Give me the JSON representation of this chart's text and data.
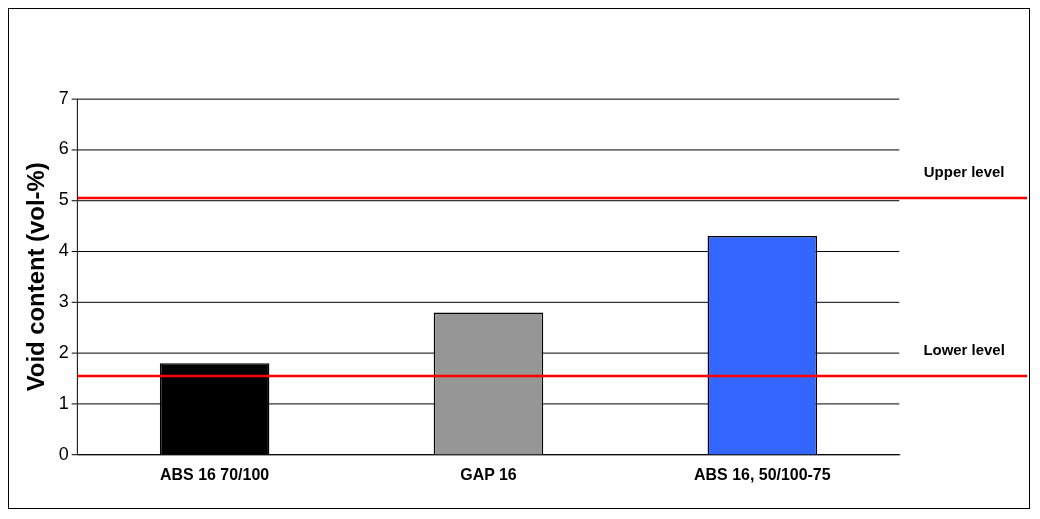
{
  "chart_data": {
    "type": "bar",
    "ylabel": "Void content (vol-%)",
    "categories": [
      "ABS 16 70/100",
      "GAP 16",
      "ABS 16, 50/100-75"
    ],
    "values": [
      1.8,
      2.8,
      4.3
    ],
    "colors": [
      "#000000",
      "#969696",
      "#3366ff"
    ],
    "ylim": [
      0,
      7
    ],
    "yticks": [
      0,
      1,
      2,
      3,
      4,
      5,
      6,
      7
    ],
    "grid": "y",
    "legend": false,
    "ref_lines": [
      {
        "axis": "y",
        "value": 5.05,
        "label": "Upper level",
        "color": "#ff0000"
      },
      {
        "axis": "y",
        "value": 1.55,
        "label": "Lower level",
        "color": "#ff0000"
      }
    ]
  }
}
